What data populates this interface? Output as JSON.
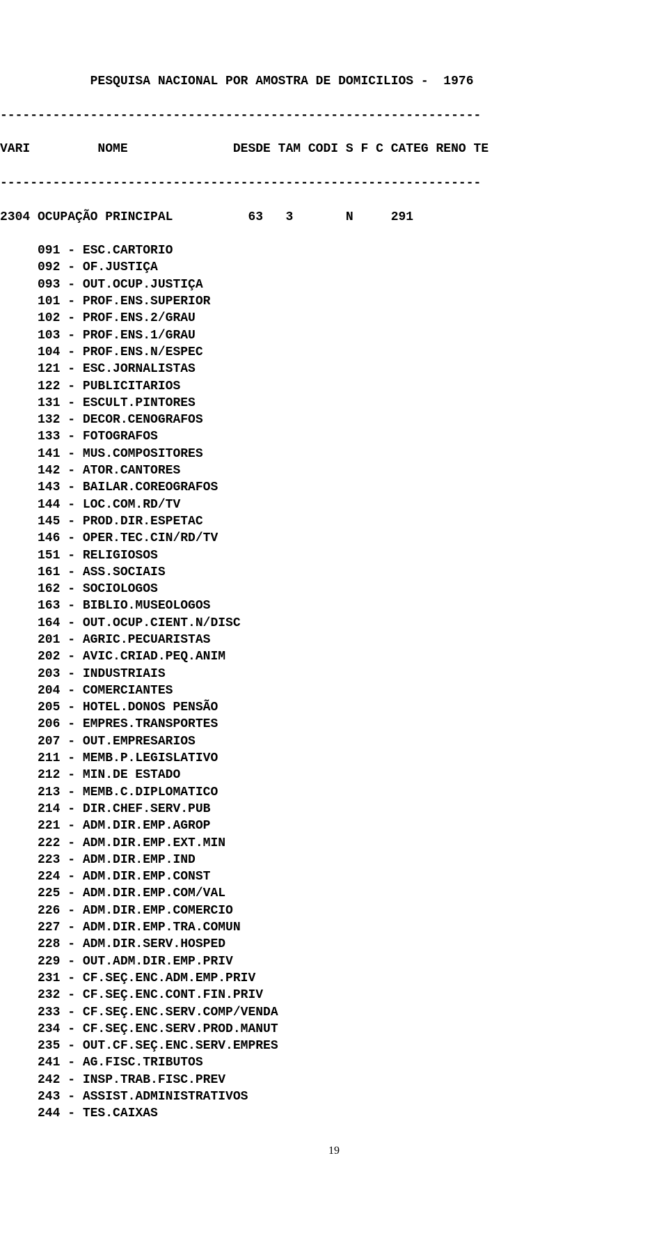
{
  "title": "            PESQUISA NACIONAL POR AMOSTRA DE DOMICILIOS -  1976",
  "divider": "----------------------------------------------------------------",
  "header": "VARI         NOME              DESDE TAM CODI S F C CATEG RENO TE",
  "variable_line": "2304 OCUPAÇÃO PRINCIPAL          63   3       N     291",
  "items": [
    "     091 - ESC.CARTORIO",
    "     092 - OF.JUSTIÇA",
    "     093 - OUT.OCUP.JUSTIÇA",
    "     101 - PROF.ENS.SUPERIOR",
    "     102 - PROF.ENS.2/GRAU",
    "     103 - PROF.ENS.1/GRAU",
    "     104 - PROF.ENS.N/ESPEC",
    "     121 - ESC.JORNALISTAS",
    "     122 - PUBLICITARIOS",
    "     131 - ESCULT.PINTORES",
    "     132 - DECOR.CENOGRAFOS",
    "     133 - FOTOGRAFOS",
    "     141 - MUS.COMPOSITORES",
    "     142 - ATOR.CANTORES",
    "     143 - BAILAR.COREOGRAFOS",
    "     144 - LOC.COM.RD/TV",
    "     145 - PROD.DIR.ESPETAC",
    "     146 - OPER.TEC.CIN/RD/TV",
    "     151 - RELIGIOSOS",
    "     161 - ASS.SOCIAIS",
    "     162 - SOCIOLOGOS",
    "     163 - BIBLIO.MUSEOLOGOS",
    "     164 - OUT.OCUP.CIENT.N/DISC",
    "     201 - AGRIC.PECUARISTAS",
    "     202 - AVIC.CRIAD.PEQ.ANIM",
    "     203 - INDUSTRIAIS",
    "     204 - COMERCIANTES",
    "     205 - HOTEL.DONOS PENSÃO",
    "     206 - EMPRES.TRANSPORTES",
    "     207 - OUT.EMPRESARIOS",
    "     211 - MEMB.P.LEGISLATIVO",
    "     212 - MIN.DE ESTADO",
    "     213 - MEMB.C.DIPLOMATICO",
    "     214 - DIR.CHEF.SERV.PUB",
    "     221 - ADM.DIR.EMP.AGROP",
    "     222 - ADM.DIR.EMP.EXT.MIN",
    "     223 - ADM.DIR.EMP.IND",
    "     224 - ADM.DIR.EMP.CONST",
    "     225 - ADM.DIR.EMP.COM/VAL",
    "     226 - ADM.DIR.EMP.COMERCIO",
    "     227 - ADM.DIR.EMP.TRA.COMUN",
    "     228 - ADM.DIR.SERV.HOSPED",
    "     229 - OUT.ADM.DIR.EMP.PRIV",
    "     231 - CF.SEÇ.ENC.ADM.EMP.PRIV",
    "     232 - CF.SEÇ.ENC.CONT.FIN.PRIV",
    "     233 - CF.SEÇ.ENC.SERV.COMP/VENDA",
    "     234 - CF.SEÇ.ENC.SERV.PROD.MANUT",
    "     235 - OUT.CF.SEÇ.ENC.SERV.EMPRES",
    "     241 - AG.FISC.TRIBUTOS",
    "     242 - INSP.TRAB.FISC.PREV",
    "     243 - ASSIST.ADMINISTRATIVOS",
    "     244 - TES.CAIXAS"
  ],
  "page_number": "19"
}
